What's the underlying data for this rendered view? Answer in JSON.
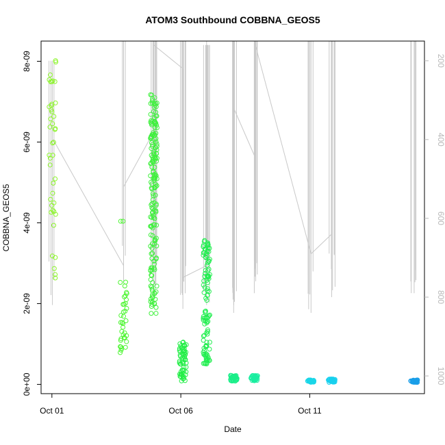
{
  "chart_data": {
    "type": "scatter",
    "title": "ATOM3 Southbound COBBNA_GEOS5",
    "xlabel": "Date",
    "ylabel": "COBBNA_GEOS5",
    "x_ticks": [
      "Oct 01",
      "Oct 06",
      "Oct 11"
    ],
    "x_tick_days": [
      1,
      6,
      11
    ],
    "xlim_days": [
      0.58,
      15.45
    ],
    "y_ticks": [
      "0e+00",
      "2e-09",
      "4e-09",
      "6e-09",
      "8e-09"
    ],
    "y_tick_values": [
      0,
      2e-09,
      4e-09,
      6e-09,
      8e-09
    ],
    "ylim": [
      -2.3e-10,
      8.5e-09
    ],
    "y2_ticks": [
      "200",
      "400",
      "600",
      "800",
      "1000"
    ],
    "y2_tick_values": [
      200,
      400,
      600,
      800,
      1000
    ],
    "y2lim": [
      1045,
      150
    ],
    "y2_reversed": true,
    "grid": false,
    "legend": "none",
    "colors": {
      "altitude_line": "#c8c8c8",
      "axis": "#000000",
      "right_axis": "#b8b8b8",
      "scale_low_lat": "#7cfc00",
      "scale_mid": "#00ee76",
      "scale_high_lat": "#1e90ff"
    },
    "series": [
      {
        "day": 1.02,
        "color": "#8cf52a",
        "ranges": [
          [
            2.62e-09,
            3.2e-09
          ],
          [
            3.9e-09,
            8.05e-09
          ]
        ],
        "count": 42
      },
      {
        "day": 3.78,
        "color": "#4cf530",
        "ranges": [
          [
            7.8e-10,
            2.55e-09
          ],
          [
            4e-09,
            4.05e-09
          ]
        ],
        "count": 38
      },
      {
        "day": 4.95,
        "color": "#3ef03c",
        "ranges": [
          [
            1.75e-09,
            7.2e-09
          ]
        ],
        "count": 180
      },
      {
        "day": 6.08,
        "color": "#22ee46",
        "ranges": [
          [
            8e-11,
            1.05e-09
          ]
        ],
        "count": 60
      },
      {
        "day": 7.0,
        "color": "#22ee50",
        "ranges": [
          [
            5e-10,
            1.85e-09
          ],
          [
            2.05e-09,
            3.62e-09
          ]
        ],
        "count": 110
      },
      {
        "day": 8.05,
        "color": "#1aee88",
        "ranges": [
          [
            8e-11,
            2.3e-10
          ]
        ],
        "count": 40
      },
      {
        "day": 8.85,
        "color": "#1aeea0",
        "ranges": [
          [
            9e-11,
            2.2e-10
          ]
        ],
        "count": 40
      },
      {
        "day": 11.05,
        "color": "#1ad6e8",
        "ranges": [
          [
            5e-11,
            1.1e-10
          ]
        ],
        "count": 30
      },
      {
        "day": 11.85,
        "color": "#18d0ee",
        "ranges": [
          [
            5e-11,
            1.4e-10
          ]
        ],
        "count": 36
      },
      {
        "day": 15.05,
        "color": "#1a9ee8",
        "ranges": [
          [
            5e-11,
            1.1e-10
          ]
        ],
        "count": 30
      }
    ],
    "altitude_connector": [
      [
        1.05,
        400
      ],
      [
        3.78,
        720
      ],
      [
        3.78,
        520
      ],
      [
        4.95,
        380
      ],
      [
        4.95,
        150
      ],
      [
        4.95,
        160
      ],
      [
        6.08,
        220
      ],
      [
        6.08,
        760
      ],
      [
        6.08,
        750
      ],
      [
        7.0,
        720
      ],
      [
        7.0,
        300
      ],
      [
        7.0,
        150
      ],
      [
        8.05,
        150
      ],
      [
        8.05,
        330
      ],
      [
        8.05,
        320
      ],
      [
        8.85,
        440
      ],
      [
        8.85,
        150
      ],
      [
        11.05,
        690
      ],
      [
        11.85,
        640
      ],
      [
        11.85,
        150
      ]
    ],
    "altitude_profiles": [
      {
        "day": 1.02,
        "top": 200,
        "bottom": 820,
        "spikes": 3
      },
      {
        "day": 3.78,
        "top": 150,
        "bottom": 760,
        "spikes": 2
      },
      {
        "day": 4.95,
        "top": 150,
        "bottom": 800,
        "spikes": 8
      },
      {
        "day": 6.08,
        "top": 150,
        "bottom": 830,
        "spikes": 6
      },
      {
        "day": 7.0,
        "top": 160,
        "bottom": 820,
        "spikes": 8
      },
      {
        "day": 8.05,
        "top": 150,
        "bottom": 840,
        "spikes": 6
      },
      {
        "day": 8.85,
        "top": 150,
        "bottom": 790,
        "spikes": 6
      },
      {
        "day": 11.05,
        "top": 150,
        "bottom": 840,
        "spikes": 5
      },
      {
        "day": 11.85,
        "top": 150,
        "bottom": 800,
        "spikes": 6
      },
      {
        "day": 15.05,
        "top": 150,
        "bottom": 790,
        "spikes": 5
      }
    ]
  }
}
